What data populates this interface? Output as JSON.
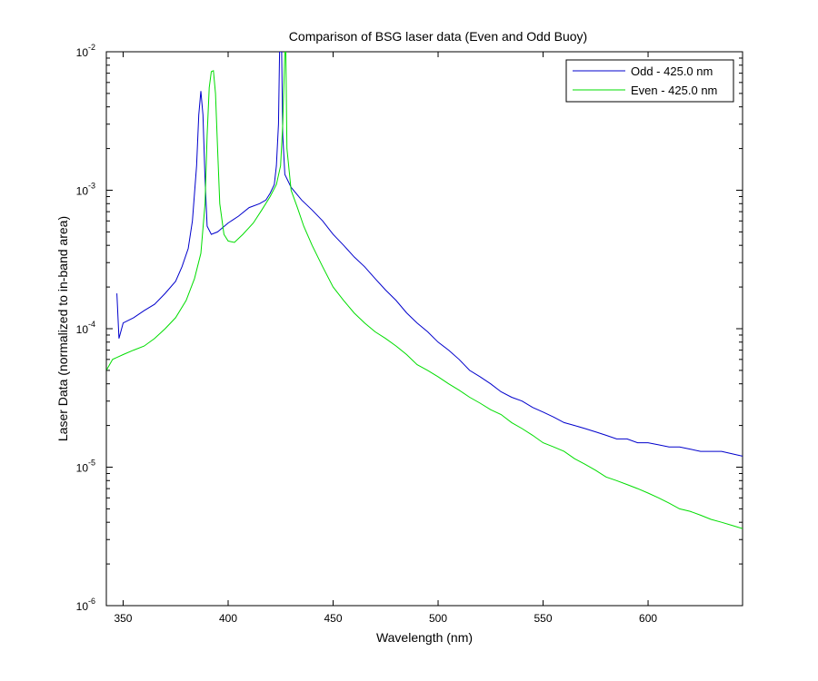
{
  "chart_data": {
    "type": "line",
    "title": "Comparison of BSG laser data (Even and Odd Buoy)",
    "xlabel": "Wavelength (nm)",
    "ylabel": "Laser Data (normalized to in-band area)",
    "xlim": [
      342,
      645
    ],
    "ylim": [
      1e-06,
      0.01
    ],
    "yscale": "log",
    "xticks": [
      350,
      400,
      450,
      500,
      550,
      600
    ],
    "xtick_labels": [
      "350",
      "400",
      "450",
      "500",
      "550",
      "600"
    ],
    "yticks": [
      1e-06,
      1e-05,
      0.0001,
      0.001,
      0.01
    ],
    "ytick_labels": [
      {
        "base": "10",
        "exp": "-6"
      },
      {
        "base": "10",
        "exp": "-5"
      },
      {
        "base": "10",
        "exp": "-4"
      },
      {
        "base": "10",
        "exp": "-3"
      },
      {
        "base": "10",
        "exp": "-2"
      }
    ],
    "grid": false,
    "legend_position": "top-right",
    "series": [
      {
        "name": "Odd - 425.0 nm",
        "color": "#0000cc",
        "points": [
          [
            347,
            0.00018
          ],
          [
            348,
            8.5e-05
          ],
          [
            350,
            0.00011
          ],
          [
            355,
            0.00012
          ],
          [
            360,
            0.000135
          ],
          [
            365,
            0.00015
          ],
          [
            370,
            0.00018
          ],
          [
            375,
            0.00022
          ],
          [
            378,
            0.00028
          ],
          [
            381,
            0.00038
          ],
          [
            383,
            0.0006
          ],
          [
            385,
            0.0015
          ],
          [
            386,
            0.0035
          ],
          [
            387,
            0.0052
          ],
          [
            388,
            0.0035
          ],
          [
            389,
            0.0012
          ],
          [
            390,
            0.00055
          ],
          [
            392,
            0.00048
          ],
          [
            395,
            0.0005
          ],
          [
            400,
            0.00058
          ],
          [
            405,
            0.00065
          ],
          [
            410,
            0.00075
          ],
          [
            415,
            0.0008
          ],
          [
            418,
            0.00085
          ],
          [
            420,
            0.00095
          ],
          [
            422,
            0.0011
          ],
          [
            423,
            0.0015
          ],
          [
            424,
            0.003
          ],
          [
            424.5,
            0.01
          ],
          [
            425.5,
            0.01
          ],
          [
            426,
            0.0025
          ],
          [
            427,
            0.0013
          ],
          [
            430,
            0.00105
          ],
          [
            435,
            0.00085
          ],
          [
            440,
            0.00072
          ],
          [
            445,
            0.0006
          ],
          [
            450,
            0.00048
          ],
          [
            455,
            0.0004
          ],
          [
            460,
            0.00033
          ],
          [
            465,
            0.00028
          ],
          [
            470,
            0.00023
          ],
          [
            475,
            0.00019
          ],
          [
            480,
            0.00016
          ],
          [
            485,
            0.00013
          ],
          [
            490,
            0.00011
          ],
          [
            495,
            9.5e-05
          ],
          [
            500,
            8e-05
          ],
          [
            505,
            7e-05
          ],
          [
            510,
            6e-05
          ],
          [
            515,
            5e-05
          ],
          [
            520,
            4.5e-05
          ],
          [
            525,
            4e-05
          ],
          [
            530,
            3.5e-05
          ],
          [
            535,
            3.2e-05
          ],
          [
            540,
            3e-05
          ],
          [
            545,
            2.7e-05
          ],
          [
            550,
            2.5e-05
          ],
          [
            555,
            2.3e-05
          ],
          [
            560,
            2.1e-05
          ],
          [
            565,
            2e-05
          ],
          [
            570,
            1.9e-05
          ],
          [
            575,
            1.8e-05
          ],
          [
            580,
            1.7e-05
          ],
          [
            585,
            1.6e-05
          ],
          [
            590,
            1.6e-05
          ],
          [
            595,
            1.5e-05
          ],
          [
            600,
            1.5e-05
          ],
          [
            605,
            1.45e-05
          ],
          [
            610,
            1.4e-05
          ],
          [
            615,
            1.4e-05
          ],
          [
            620,
            1.35e-05
          ],
          [
            625,
            1.3e-05
          ],
          [
            630,
            1.3e-05
          ],
          [
            635,
            1.3e-05
          ],
          [
            640,
            1.25e-05
          ],
          [
            645,
            1.2e-05
          ]
        ]
      },
      {
        "name": "Even - 425.0 nm",
        "color": "#00dd00",
        "points": [
          [
            342,
            5e-05
          ],
          [
            345,
            6e-05
          ],
          [
            350,
            6.5e-05
          ],
          [
            355,
            7e-05
          ],
          [
            360,
            7.5e-05
          ],
          [
            365,
            8.5e-05
          ],
          [
            370,
            0.0001
          ],
          [
            375,
            0.00012
          ],
          [
            380,
            0.00016
          ],
          [
            384,
            0.00023
          ],
          [
            387,
            0.00035
          ],
          [
            389,
            0.0008
          ],
          [
            390,
            0.0025
          ],
          [
            391,
            0.0055
          ],
          [
            392,
            0.0072
          ],
          [
            393,
            0.0073
          ],
          [
            394,
            0.005
          ],
          [
            395,
            0.002
          ],
          [
            396,
            0.0008
          ],
          [
            398,
            0.00048
          ],
          [
            400,
            0.00043
          ],
          [
            403,
            0.00042
          ],
          [
            407,
            0.00048
          ],
          [
            412,
            0.00058
          ],
          [
            416,
            0.00072
          ],
          [
            420,
            0.0009
          ],
          [
            423,
            0.0011
          ],
          [
            425,
            0.0015
          ],
          [
            426,
            0.003
          ],
          [
            427,
            0.01
          ],
          [
            427.5,
            0.01
          ],
          [
            428,
            0.002
          ],
          [
            430,
            0.001
          ],
          [
            433,
            0.00075
          ],
          [
            436,
            0.00055
          ],
          [
            440,
            0.0004
          ],
          [
            445,
            0.00028
          ],
          [
            450,
            0.0002
          ],
          [
            455,
            0.00016
          ],
          [
            460,
            0.00013
          ],
          [
            465,
            0.00011
          ],
          [
            470,
            9.5e-05
          ],
          [
            475,
            8.5e-05
          ],
          [
            480,
            7.5e-05
          ],
          [
            485,
            6.5e-05
          ],
          [
            490,
            5.5e-05
          ],
          [
            495,
            5e-05
          ],
          [
            500,
            4.5e-05
          ],
          [
            505,
            4e-05
          ],
          [
            510,
            3.6e-05
          ],
          [
            515,
            3.2e-05
          ],
          [
            520,
            2.9e-05
          ],
          [
            525,
            2.6e-05
          ],
          [
            530,
            2.4e-05
          ],
          [
            535,
            2.1e-05
          ],
          [
            540,
            1.9e-05
          ],
          [
            545,
            1.7e-05
          ],
          [
            550,
            1.5e-05
          ],
          [
            555,
            1.4e-05
          ],
          [
            560,
            1.3e-05
          ],
          [
            565,
            1.15e-05
          ],
          [
            570,
            1.05e-05
          ],
          [
            575,
            9.5e-06
          ],
          [
            580,
            8.5e-06
          ],
          [
            585,
            8e-06
          ],
          [
            590,
            7.5e-06
          ],
          [
            595,
            7e-06
          ],
          [
            600,
            6.5e-06
          ],
          [
            605,
            6e-06
          ],
          [
            610,
            5.5e-06
          ],
          [
            615,
            5e-06
          ],
          [
            620,
            4.8e-06
          ],
          [
            625,
            4.5e-06
          ],
          [
            630,
            4.2e-06
          ],
          [
            635,
            4e-06
          ],
          [
            640,
            3.8e-06
          ],
          [
            645,
            3.6e-06
          ]
        ]
      }
    ]
  }
}
